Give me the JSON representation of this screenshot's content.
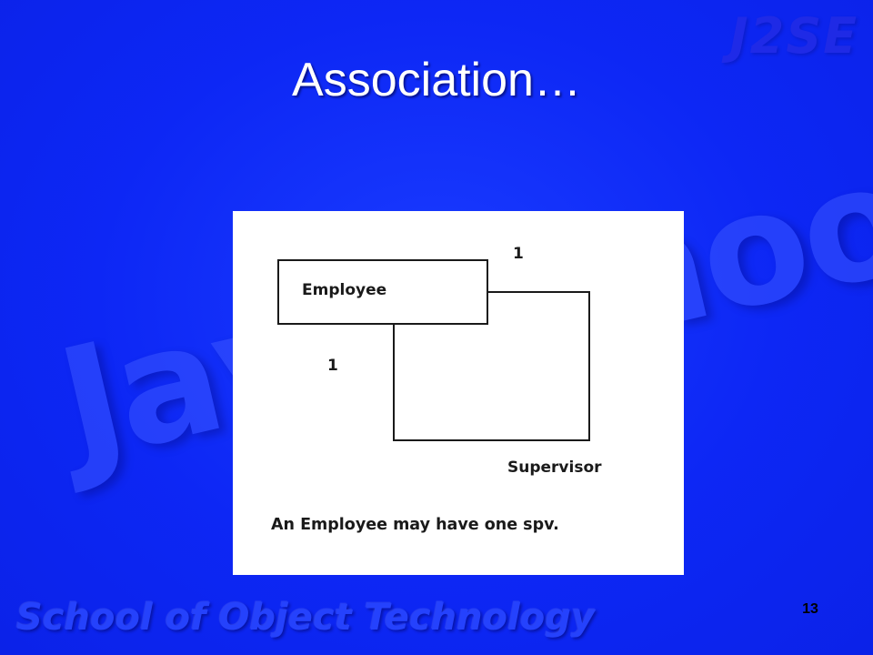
{
  "slide": {
    "title": "Association…",
    "page_number": "13"
  },
  "watermarks": {
    "top_right": "J2SE",
    "center": "JavaSchool",
    "bottom": "School of Object Technology"
  },
  "diagram": {
    "employee_class": "Employee",
    "supervisor_role": "Supervisor",
    "multiplicity_top": "1",
    "multiplicity_left": "1",
    "caption": "An Employee may have one spv."
  },
  "colors": {
    "background": "#0d27f5",
    "panel": "#ffffff",
    "title_text": "#ffffff",
    "diagram_stroke": "#1a1a1a"
  }
}
